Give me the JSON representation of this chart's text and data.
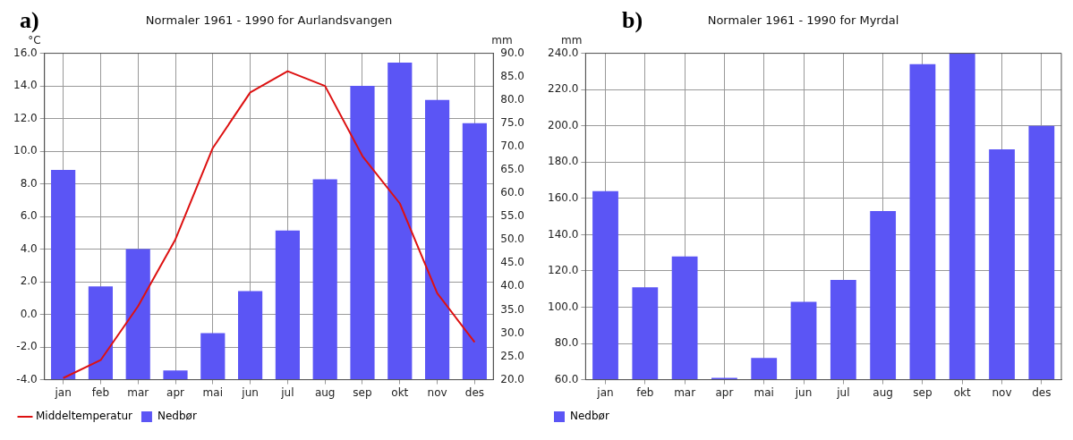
{
  "chart_data": [
    {
      "type": "bar",
      "title": "Normaler 1961 - 1990 for Aurlandsvangen",
      "ylabel": "°C",
      "y2label": "mm",
      "annotations": [
        "a)"
      ],
      "categories": [
        "jan",
        "feb",
        "mar",
        "apr",
        "mai",
        "jun",
        "jul",
        "aug",
        "sep",
        "okt",
        "nov",
        "des"
      ],
      "series": [
        {
          "name": "Middeltemperatur",
          "type": "line",
          "color": "#dd1111",
          "values": [
            -3.9,
            -2.8,
            0.5,
            4.6,
            10.2,
            13.6,
            14.9,
            14.0,
            9.7,
            6.8,
            1.3,
            -1.7
          ]
        },
        {
          "name": "Nedbør",
          "type": "bar",
          "axis": "y2",
          "color": "#5b55f5",
          "values": [
            65,
            40,
            48,
            22,
            30,
            39,
            52,
            63,
            83,
            88,
            80,
            75
          ]
        }
      ],
      "ylim": [
        -4,
        16
      ],
      "yticks": [
        {
          "value": -4,
          "label": "-4.0"
        },
        {
          "value": -2,
          "label": "-2.0"
        },
        {
          "value": 0,
          "label": "0.0"
        },
        {
          "value": 2,
          "label": "2.0"
        },
        {
          "value": 4,
          "label": "4.0"
        },
        {
          "value": 6,
          "label": "6.0"
        },
        {
          "value": 8,
          "label": "8.0"
        },
        {
          "value": 10,
          "label": "10.0"
        },
        {
          "value": 12,
          "label": "12.0"
        },
        {
          "value": 14,
          "label": "14.0"
        },
        {
          "value": 16,
          "label": "16.0"
        }
      ],
      "y2lim": [
        20,
        90
      ],
      "y2ticks": [
        {
          "value": 20,
          "label": "20.0"
        },
        {
          "value": 25,
          "label": "25.0"
        },
        {
          "value": 30,
          "label": "30.0"
        },
        {
          "value": 35,
          "label": "35.0"
        },
        {
          "value": 40,
          "label": "40.0"
        },
        {
          "value": 45,
          "label": "45.0"
        },
        {
          "value": 50,
          "label": "50.0"
        },
        {
          "value": 55,
          "label": "55.0"
        },
        {
          "value": 60,
          "label": "60.0"
        },
        {
          "value": 65,
          "label": "65.0"
        },
        {
          "value": 70,
          "label": "70.0"
        },
        {
          "value": 75,
          "label": "75.0"
        },
        {
          "value": 80,
          "label": "80.0"
        },
        {
          "value": 85,
          "label": "85.0"
        },
        {
          "value": 90,
          "label": "90.0"
        }
      ],
      "grid": true,
      "legend": "bottom left",
      "marker": "none"
    },
    {
      "type": "bar",
      "title": "Normaler 1961 - 1990 for Myrdal",
      "ylabel": "mm",
      "annotations": [
        "b)"
      ],
      "categories": [
        "jan",
        "feb",
        "mar",
        "apr",
        "mai",
        "jun",
        "jul",
        "aug",
        "sep",
        "okt",
        "nov",
        "des"
      ],
      "series": [
        {
          "name": "Nedbør",
          "color": "#5b55f5",
          "values": [
            164,
            111,
            128,
            61,
            72,
            103,
            115,
            153,
            234,
            240,
            187,
            200
          ]
        }
      ],
      "ylim": [
        60,
        240
      ],
      "yticks": [
        {
          "value": 60,
          "label": "60.0"
        },
        {
          "value": 80,
          "label": "80.0"
        },
        {
          "value": 100,
          "label": "100.0"
        },
        {
          "value": 120,
          "label": "120.0"
        },
        {
          "value": 140,
          "label": "140.0"
        },
        {
          "value": 160,
          "label": "160.0"
        },
        {
          "value": 180,
          "label": "180.0"
        },
        {
          "value": 200,
          "label": "200.0"
        },
        {
          "value": 220,
          "label": "220.0"
        },
        {
          "value": 240,
          "label": "240.0"
        }
      ],
      "grid": true,
      "legend": "bottom left"
    }
  ]
}
